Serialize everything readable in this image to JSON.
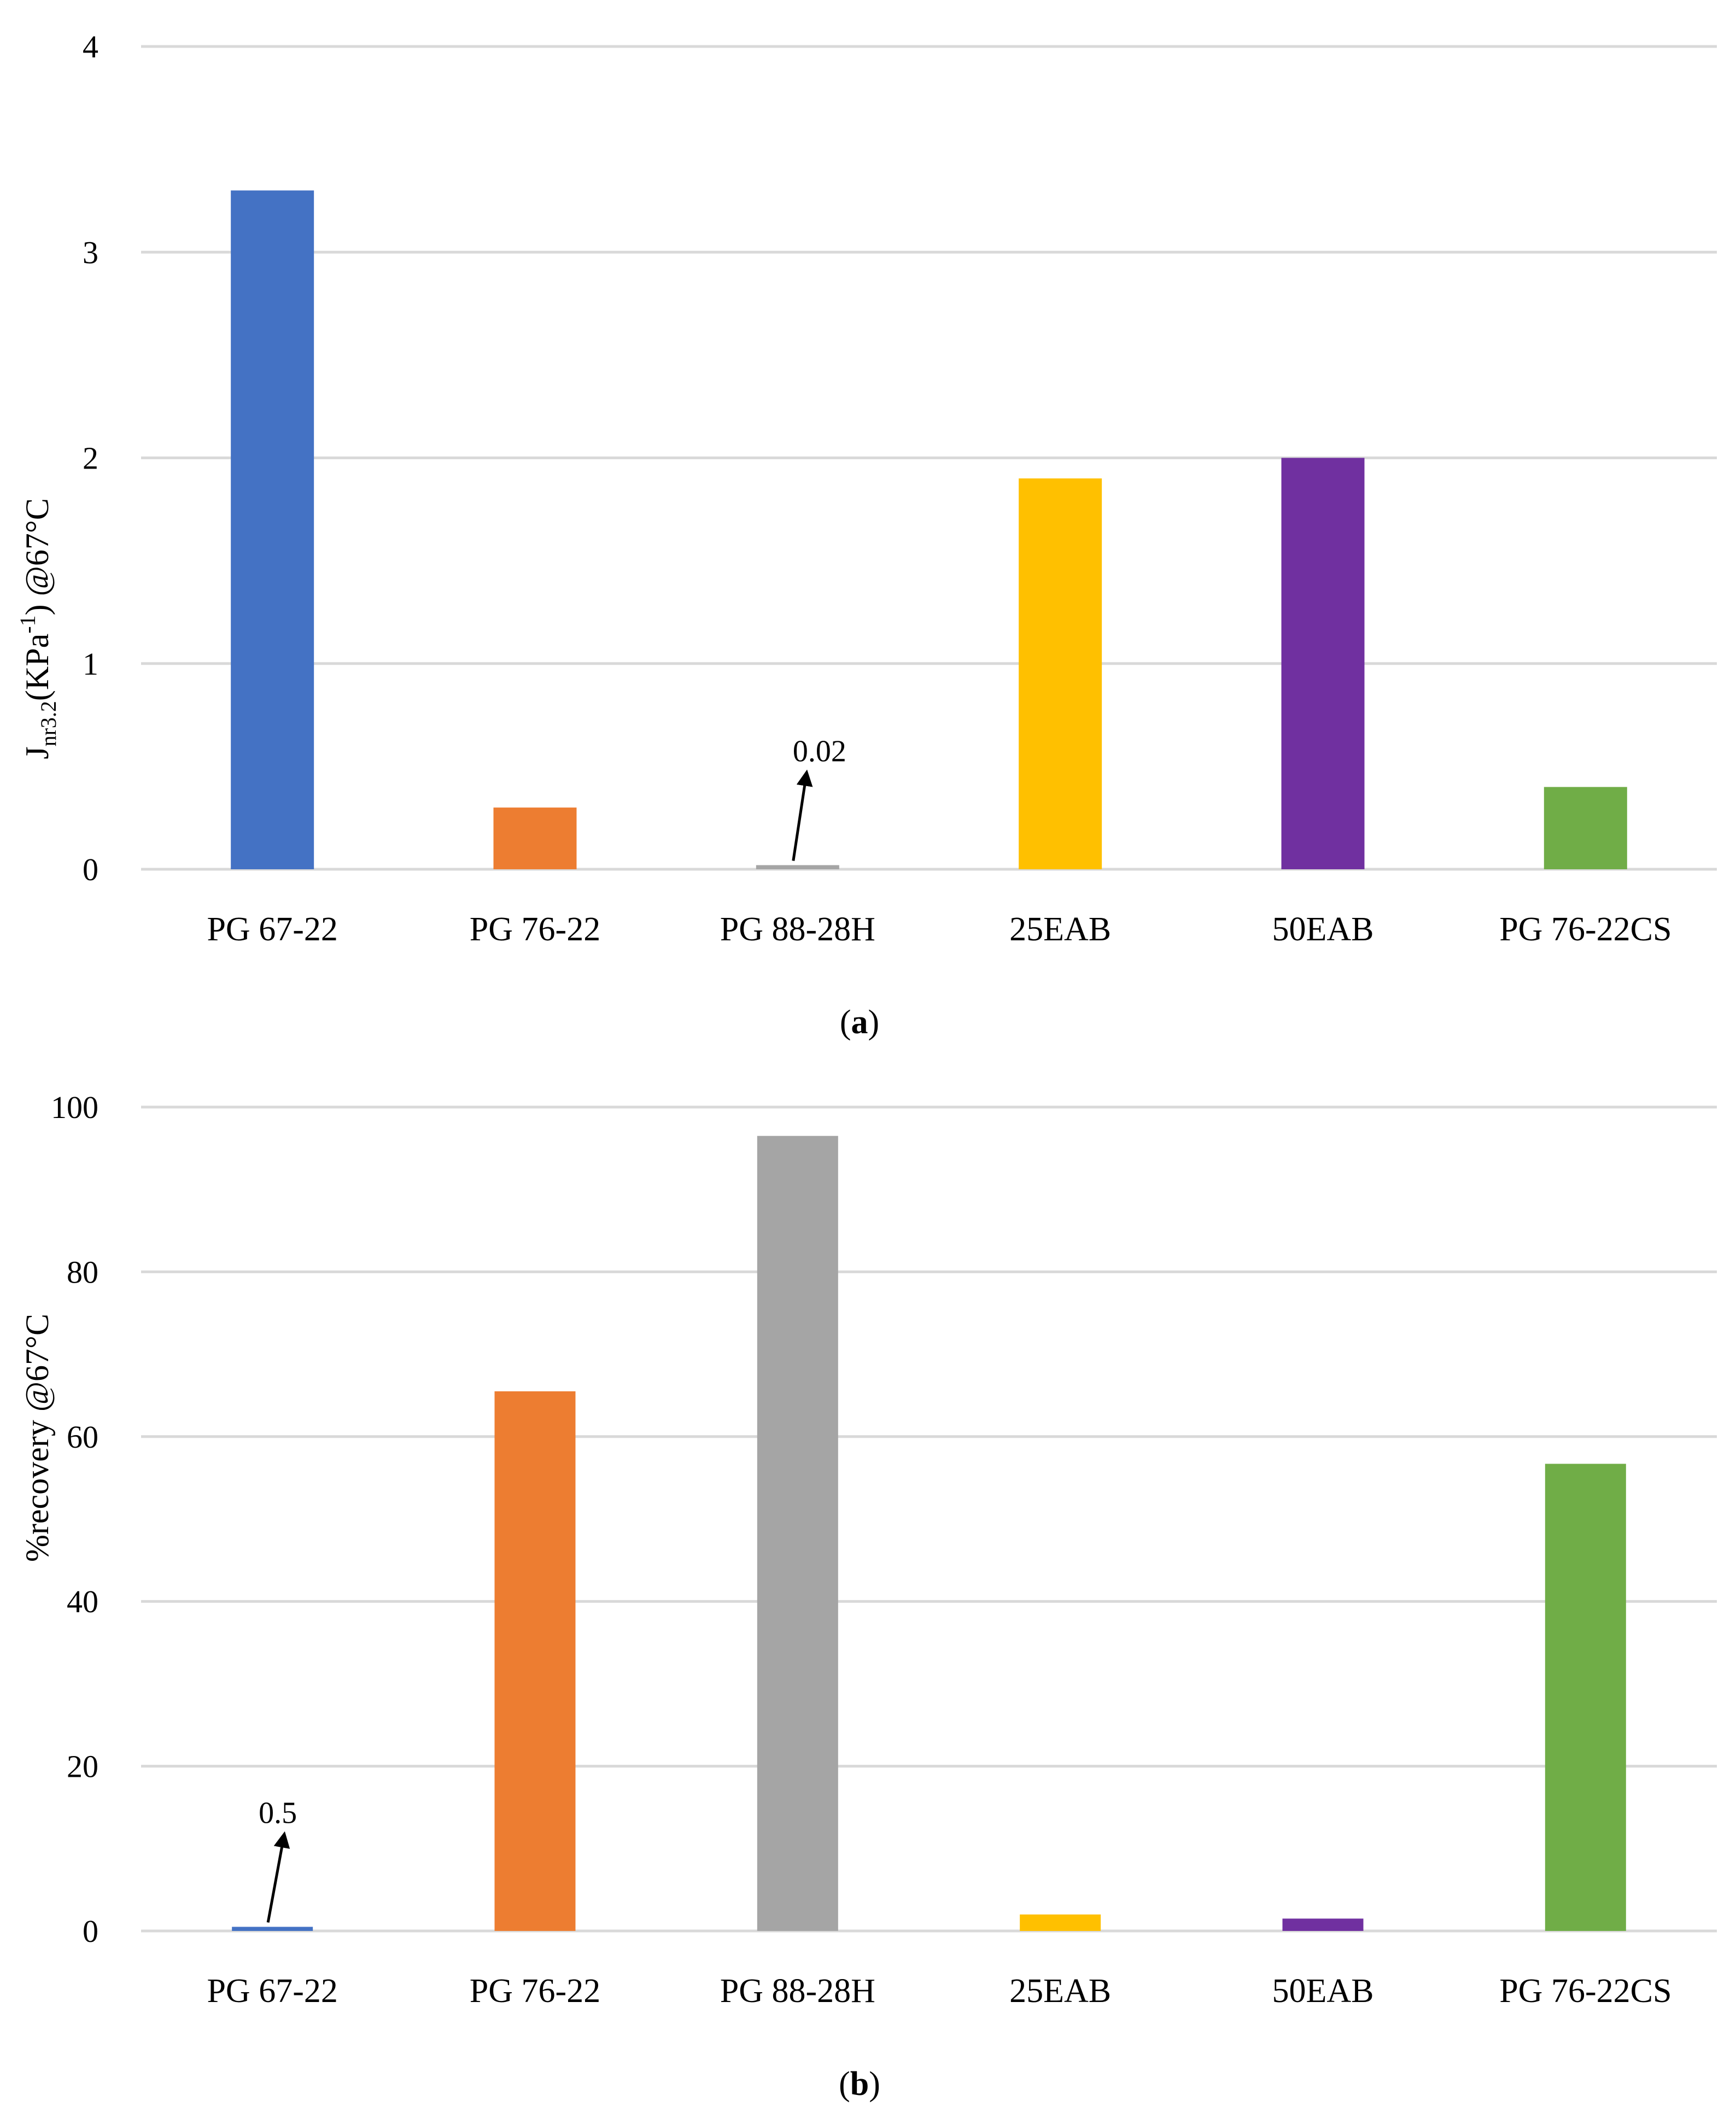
{
  "chart_data": [
    {
      "type": "bar",
      "panel": "a",
      "ylabel": {
        "main": "J",
        "sub": "nr3.2",
        "rest": "(KPa",
        "sup": "-1",
        "tail": ") @67°C"
      },
      "ylim": [
        0,
        4
      ],
      "yticks": [
        "0",
        "1",
        "2",
        "3",
        "4"
      ],
      "grid": true,
      "categories": [
        "PG 67-22",
        "PG 76-22",
        "PG 88-28H",
        "25EAB",
        "50EAB",
        "PG 76-22CS"
      ],
      "values": [
        3.3,
        0.3,
        0.02,
        1.9,
        2.0,
        0.4
      ],
      "colors": [
        "#4472c4",
        "#ed7d31",
        "#a5a5a5",
        "#ffc000",
        "#7030a0",
        "#70ad47"
      ],
      "annotation": {
        "text": "0.02",
        "category_index": 2
      }
    },
    {
      "type": "bar",
      "panel": "b",
      "ylabel": {
        "main": "%recovery @67°C"
      },
      "ylim": [
        0,
        100
      ],
      "yticks": [
        "0",
        "20",
        "40",
        "60",
        "80",
        "100"
      ],
      "grid": true,
      "categories": [
        "PG 67-22",
        "PG 76-22",
        "PG 88-28H",
        "25EAB",
        "50EAB",
        "PG 76-22CS"
      ],
      "values": [
        0.5,
        65.5,
        96.5,
        2.0,
        1.5,
        56.7
      ],
      "colors": [
        "#4472c4",
        "#ed7d31",
        "#a5a5a5",
        "#ffc000",
        "#7030a0",
        "#70ad47"
      ],
      "annotation": {
        "text": "0.5",
        "category_index": 0
      }
    }
  ],
  "captions": {
    "a": "a",
    "b": "b"
  }
}
